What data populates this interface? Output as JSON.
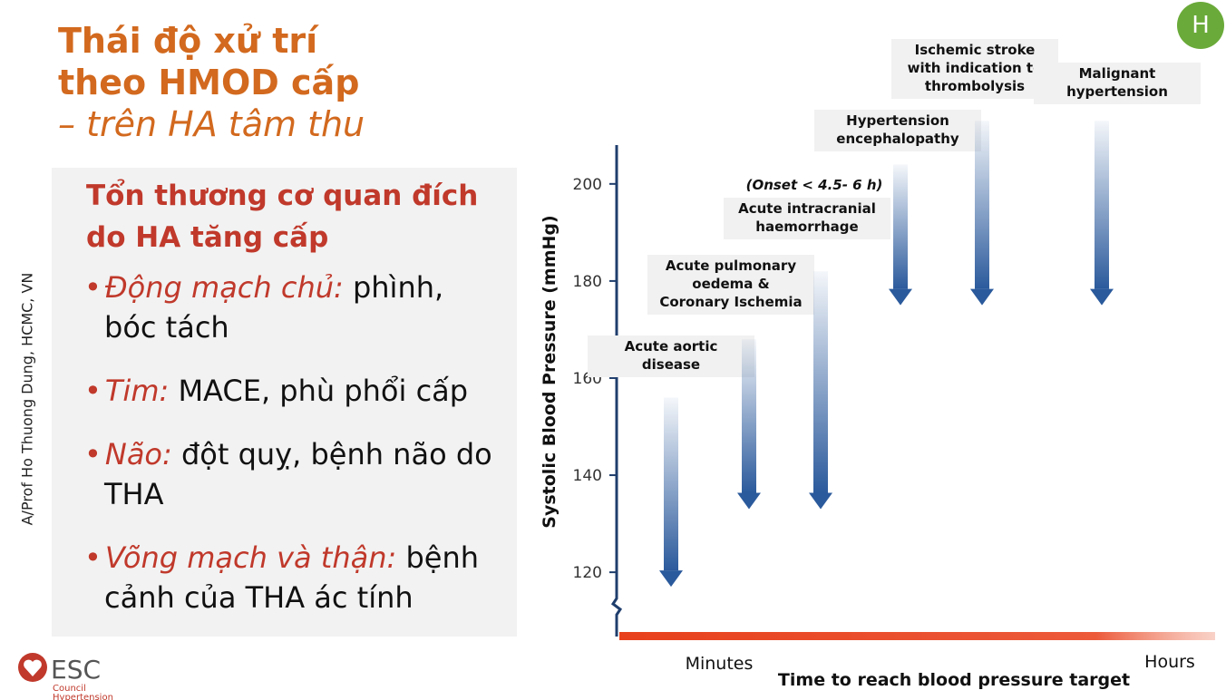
{
  "title": {
    "line1": "Thái độ xử trí",
    "line2": "theo HMOD cấp",
    "line3": "– trên HA tâm thu"
  },
  "panel": {
    "heading": [
      "Tổn thương cơ quan đích",
      "do HA tăng cấp"
    ],
    "items": [
      {
        "label": "Động mạch chủ:",
        "text": "phình, bóc tách"
      },
      {
        "label": "Tim:",
        "text": "MACE, phù phổi cấp"
      },
      {
        "label": "Não:",
        "text": "đột quỵ, bệnh não do THA"
      },
      {
        "label": "Võng mạch và thận:",
        "text": "bệnh cảnh của THA ác tính"
      }
    ]
  },
  "author": "A/Prof Ho Thuong Dung, HCMC, VN",
  "logo": {
    "name": "ESC",
    "line1": "Council",
    "line2": "Hypertension"
  },
  "avatar": "H",
  "chart_data": {
    "type": "arrow",
    "y_label": "Systolic Blood Pressure (mmHg)",
    "x_label": "Time to reach blood pressure target",
    "x_start": "Minutes",
    "x_end": "Hours",
    "annotation": "(Onset < 4.5- 6 h)",
    "ylim": [
      109,
      208
    ],
    "yticks": [
      120,
      140,
      160,
      180,
      200
    ],
    "color": "#2b5a9c",
    "arrows": [
      {
        "label": [
          "Acute aortic",
          "disease"
        ],
        "from": 156,
        "to": 117
      },
      {
        "label": [
          "Acute pulmonary",
          "oedema &",
          "Coronary Ischemia"
        ],
        "from": 168,
        "to": 133
      },
      {
        "label": [
          "Acute intracranial",
          "haemorrhage"
        ],
        "from": 182,
        "to": 133
      },
      {
        "label": [
          "Hypertension",
          "encephalopathy"
        ],
        "from": 204,
        "to": 175
      },
      {
        "label": [
          "Ischemic stroke",
          "with indication to",
          "thrombolysis"
        ],
        "from": 213,
        "to": 175
      },
      {
        "label": [
          "Malignant",
          "hypertension"
        ],
        "from": 213,
        "to": 175
      }
    ]
  }
}
